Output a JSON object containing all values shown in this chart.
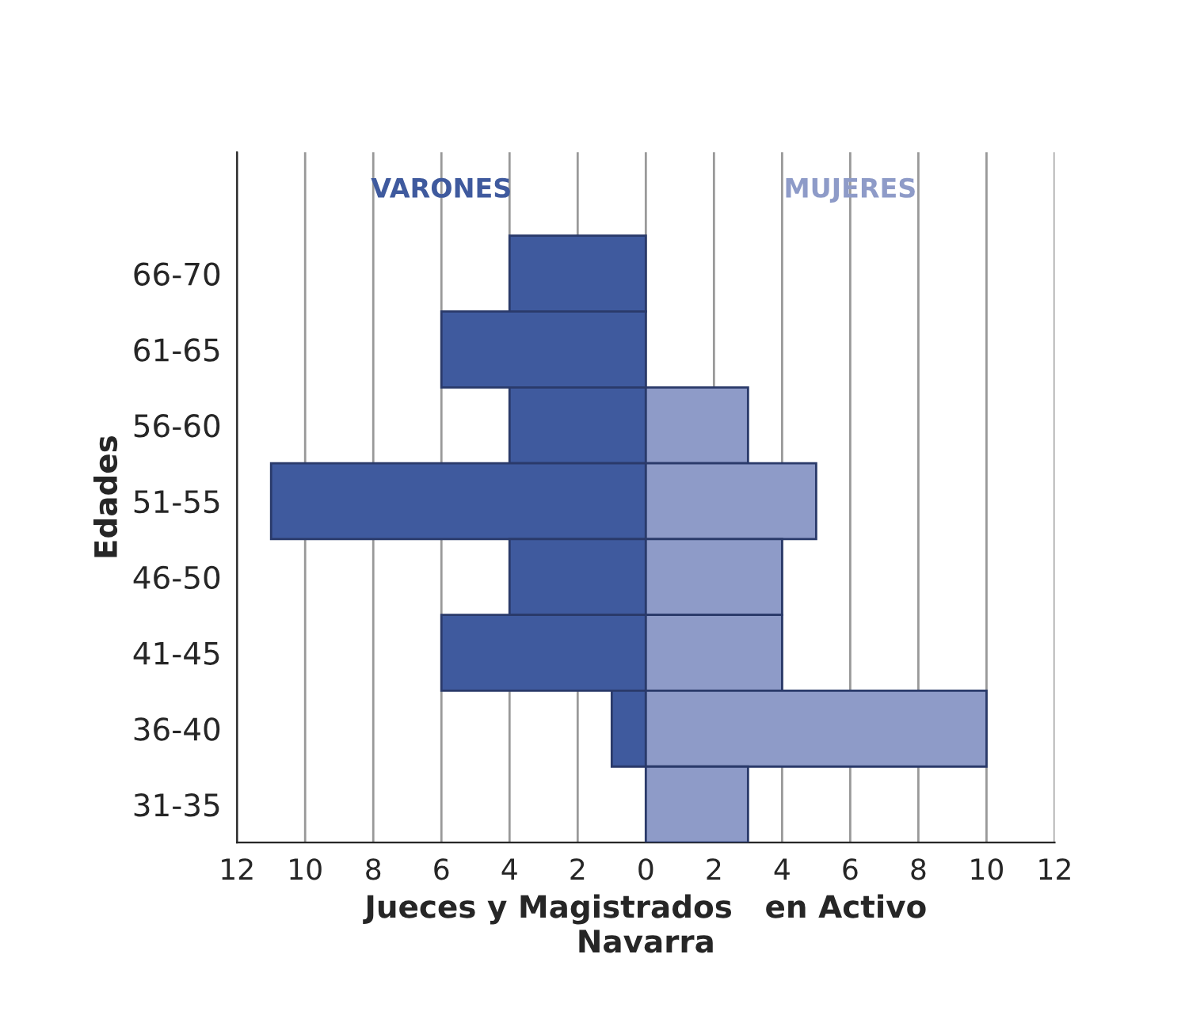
{
  "chart_data": {
    "type": "bar",
    "orientation": "horizontal",
    "stacked": true,
    "xlabel": "Jueces y Magistrados   en Activo\nNavarra",
    "ylabel": "Edades",
    "categories": [
      "66-70",
      "61-65",
      "56-60",
      "51-55",
      "46-50",
      "41-45",
      "36-40",
      "31-35"
    ],
    "series": [
      {
        "name": "VARONES",
        "color": "#3f5a9e",
        "values": [
          -4,
          -6,
          -4,
          -11,
          -4,
          -6,
          -1,
          null
        ]
      },
      {
        "name": "MUJERES",
        "color": "#8e9bc8",
        "values": [
          null,
          null,
          3,
          5,
          4,
          4,
          10,
          3
        ]
      }
    ],
    "xlim": [
      -12,
      12
    ],
    "xticks": [
      {
        "value": -12,
        "label": "12"
      },
      {
        "value": -10,
        "label": "10"
      },
      {
        "value": -8,
        "label": "8"
      },
      {
        "value": -6,
        "label": "6"
      },
      {
        "value": -4,
        "label": "4"
      },
      {
        "value": -2,
        "label": "2"
      },
      0,
      2,
      4,
      6,
      8,
      10,
      12
    ],
    "grid": "x",
    "legend": false
  }
}
